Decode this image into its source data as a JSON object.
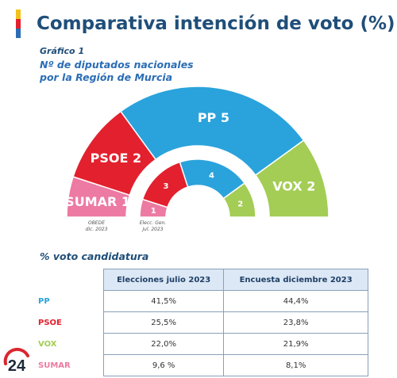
{
  "title": "Comparativa intención de voto (%)",
  "figure_label": "Gráfico 1",
  "subtitle_line1": "Nº de diputados nacionales",
  "subtitle_line2": "por la Región de Murcia",
  "section_title": "% voto candidatura",
  "logo_text": "24",
  "colors": {
    "PP": "#2aa3dc",
    "PSOE": "#e3202d",
    "VOX": "#a3cd55",
    "SUMAR": "#ec7aa2",
    "title": "#1f4e79",
    "table_header_bg": "#dce8f5"
  },
  "chart_data": [
    {
      "type": "parliament-hemicycle",
      "name": "OBEDE dic. 2023",
      "label_line1": "OBEDE",
      "label_line2": "dic. 2023",
      "seats": [
        {
          "party": "SUMAR",
          "seats": 1,
          "label": "SUMAR 1"
        },
        {
          "party": "PSOE",
          "seats": 2,
          "label": "PSOE 2"
        },
        {
          "party": "PP",
          "seats": 5,
          "label": "PP 5"
        },
        {
          "party": "VOX",
          "seats": 2,
          "label": "VOX 2"
        }
      ]
    },
    {
      "type": "parliament-hemicycle",
      "name": "Elecc. Gen. jul. 2023",
      "label_line1": "Elecc. Gen.",
      "label_line2": "jul. 2023",
      "seats": [
        {
          "party": "SUMAR",
          "seats": 1,
          "label": "1"
        },
        {
          "party": "PSOE",
          "seats": 3,
          "label": "3"
        },
        {
          "party": "PP",
          "seats": 4,
          "label": "4"
        },
        {
          "party": "VOX",
          "seats": 2,
          "label": "2"
        }
      ]
    },
    {
      "type": "table",
      "columns": [
        "Elecciones julio 2023",
        "Encuesta diciembre 2023"
      ],
      "rows": [
        {
          "party": "PP",
          "values": [
            "41,5%",
            "44,4%"
          ]
        },
        {
          "party": "PSOE",
          "values": [
            "25,5%",
            "23,8%"
          ]
        },
        {
          "party": "VOX",
          "values": [
            "22,0%",
            "21,9%"
          ]
        },
        {
          "party": "SUMAR",
          "values": [
            "9,6 %",
            "8,1%"
          ]
        }
      ]
    }
  ]
}
